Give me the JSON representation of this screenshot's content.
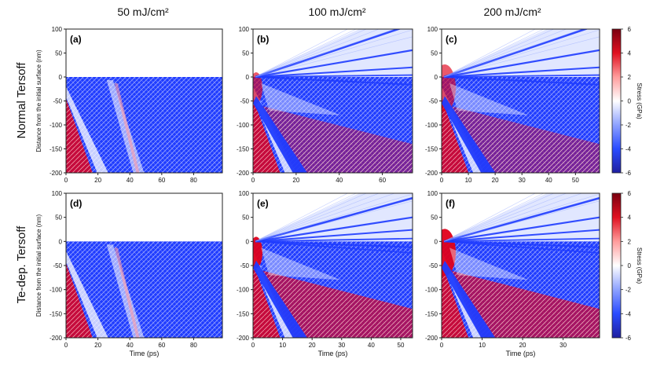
{
  "columns": [
    "50 mJ/cm²",
    "100 mJ/cm²",
    "200 mJ/cm²"
  ],
  "rows": [
    "Normal Tersoff",
    "Te-dep. Tersoff"
  ],
  "colors": {
    "compressive": "#1f3cff",
    "neutral": "#ffffff",
    "tensile": "#e0001a",
    "cb_stops": [
      "#1f1fa0",
      "#2a4bff",
      "#8ea2ff",
      "#ffffff",
      "#ff9c9c",
      "#e01020",
      "#7a0010"
    ]
  },
  "chart_data": [
    {
      "panel": "(a)",
      "type": "heatmap",
      "fluence": "50 mJ/cm²",
      "model": "Normal Tersoff",
      "xlim": [
        0,
        98
      ],
      "ylim": [
        -200,
        100
      ],
      "xticks": [
        0,
        20,
        40,
        60,
        80
      ],
      "ylabel": "Distance from the initial surface (nm)",
      "xlabel": ""
    },
    {
      "panel": "(b)",
      "type": "heatmap",
      "fluence": "100 mJ/cm²",
      "model": "Normal Tersoff",
      "xlim": [
        0,
        74
      ],
      "ylim": [
        -200,
        100
      ],
      "xticks": [
        0,
        20,
        40,
        60
      ],
      "xlabel": ""
    },
    {
      "panel": "(c)",
      "type": "heatmap",
      "fluence": "200 mJ/cm²",
      "model": "Normal Tersoff",
      "xlim": [
        0,
        59
      ],
      "ylim": [
        -200,
        100
      ],
      "xticks": [
        0,
        10,
        20,
        30,
        40,
        50
      ],
      "xlabel": ""
    },
    {
      "panel": "(d)",
      "type": "heatmap",
      "fluence": "50 mJ/cm²",
      "model": "Te-dep. Tersoff",
      "xlim": [
        0,
        98
      ],
      "ylim": [
        -200,
        100
      ],
      "xticks": [
        0,
        20,
        40,
        60,
        80
      ],
      "ylabel": "Distance from the initial surface (nm)",
      "xlabel": "Time (ps)"
    },
    {
      "panel": "(e)",
      "type": "heatmap",
      "fluence": "100 mJ/cm²",
      "model": "Te-dep. Tersoff",
      "xlim": [
        0,
        54
      ],
      "ylim": [
        -200,
        100
      ],
      "xticks": [
        0,
        10,
        20,
        30,
        40,
        50
      ],
      "xlabel": "Time (ps)"
    },
    {
      "panel": "(f)",
      "type": "heatmap",
      "fluence": "200 mJ/cm²",
      "model": "Te-dep. Tersoff",
      "xlim": [
        0,
        39
      ],
      "ylim": [
        -200,
        100
      ],
      "xticks": [
        0,
        10,
        20,
        30
      ],
      "xlabel": "Time (ps)"
    }
  ],
  "colorbar": {
    "label": "Stress (GPa)",
    "range": [
      -6,
      6
    ],
    "ticks": [
      -6,
      -4,
      -2,
      0,
      2,
      4,
      6
    ]
  },
  "yticks": [
    -200,
    -150,
    -100,
    -50,
    0,
    50,
    100
  ]
}
